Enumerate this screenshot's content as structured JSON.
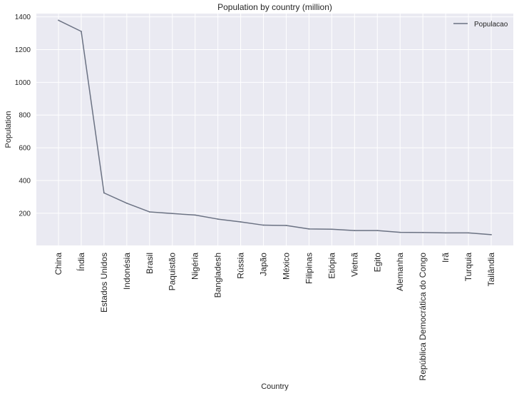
{
  "chart_data": {
    "type": "line",
    "title": "Population by country (million)",
    "xlabel": "Country",
    "ylabel": "Population",
    "categories": [
      "China",
      "Índia",
      "Estados Unidos",
      "Indonésia",
      "Brasil",
      "Paquistão",
      "Nigéria",
      "Bangladesh",
      "Rússia",
      "Japão",
      "México",
      "Filipinas",
      "Etiópia",
      "Vietnã",
      "Egito",
      "Alemanha",
      "República Democrática do Congo",
      "Irã",
      "Turquia",
      "Tailândia"
    ],
    "series": [
      {
        "name": "Populacao",
        "color": "#6b7283",
        "values": [
          1379,
          1311,
          324,
          261,
          208,
          198,
          189,
          164,
          147,
          127,
          125,
          104,
          102,
          94,
          94,
          83,
          82,
          80,
          80,
          69
        ]
      }
    ],
    "ylim": [
      3,
      1420
    ],
    "yticks": [
      200,
      400,
      600,
      800,
      1000,
      1200,
      1400
    ],
    "grid": true,
    "legend_position": "top-right",
    "background_color": "#eaeaf2",
    "grid_color": "#ffffff"
  }
}
